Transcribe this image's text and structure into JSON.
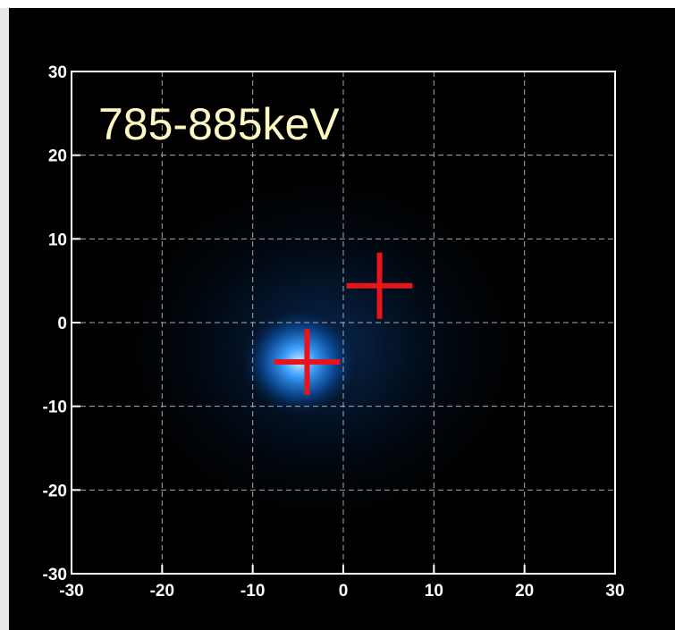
{
  "chart_data": {
    "type": "scatter",
    "annotation": "785-885keV",
    "xlim": [
      -30,
      30
    ],
    "ylim": [
      -30,
      30
    ],
    "xticks": [
      -30,
      -20,
      -10,
      0,
      10,
      20,
      30
    ],
    "yticks": [
      -30,
      -20,
      -10,
      0,
      10,
      20,
      30
    ],
    "grid": true,
    "marker": "+",
    "series": [
      {
        "color": "#e8141c",
        "x": [
          4,
          -4
        ],
        "values": [
          4.4,
          -4.7
        ]
      }
    ]
  }
}
